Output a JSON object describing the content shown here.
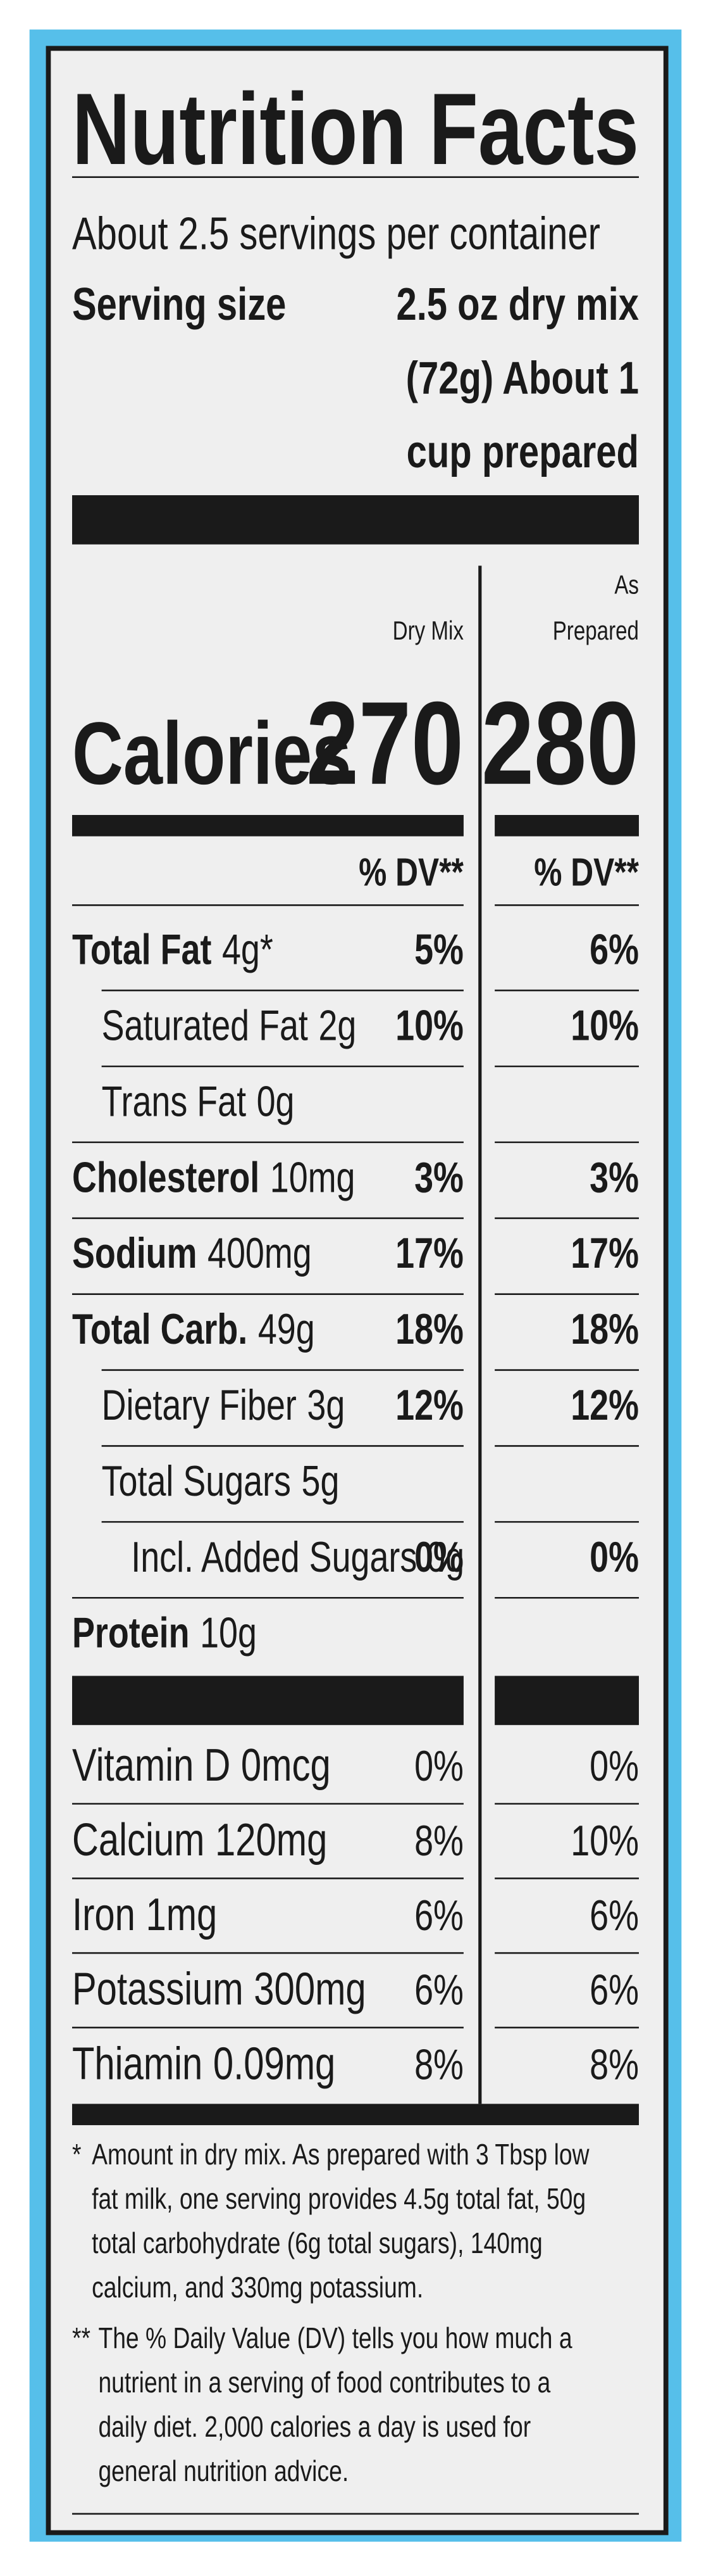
{
  "header": {
    "title": "Nutrition Facts",
    "servings": "About 2.5 servings per container",
    "serving_size_label": "Serving size",
    "serving_size_lines": [
      "2.5 oz dry mix",
      "(72g) About 1",
      "cup prepared"
    ]
  },
  "columns": {
    "dry_mix": "Dry Mix",
    "as_prepared": [
      "As",
      "Prepared"
    ]
  },
  "calories": {
    "label": "Calories",
    "dry_mix": "270",
    "as_prepared": "280"
  },
  "dv_header": [
    "% DV**",
    "% DV**"
  ],
  "nutrients": [
    {
      "label": "Total Fat",
      "amount": "4g*",
      "dry_mix": "5%",
      "as_prepared": "6%",
      "level": 0
    },
    {
      "label": "Saturated Fat",
      "amount": "2g",
      "dry_mix": "10%",
      "as_prepared": "10%",
      "level": 1
    },
    {
      "label": "Trans Fat",
      "amount": "0g",
      "level": 1
    },
    {
      "label": "Cholesterol",
      "amount": "10mg",
      "dry_mix": "3%",
      "as_prepared": "3%",
      "level": 0
    },
    {
      "label": "Sodium",
      "amount": "400mg",
      "dry_mix": "17%",
      "as_prepared": "17%",
      "level": 0
    },
    {
      "label": "Total Carb.",
      "amount": "49g",
      "dry_mix": "18%",
      "as_prepared": "18%",
      "level": 0
    },
    {
      "label": "Dietary Fiber",
      "amount": "3g",
      "dry_mix": "12%",
      "as_prepared": "12%",
      "level": 1
    },
    {
      "label": "Total Sugars",
      "amount": "5g",
      "level": 1
    },
    {
      "label": "Incl. Added Sugars 0g",
      "dry_mix": "0%",
      "as_prepared": "0%",
      "level": 2
    },
    {
      "label": "Protein",
      "amount": "10g",
      "level": 0
    }
  ],
  "vitamins": [
    {
      "label": "Vitamin D",
      "amount": "0mcg",
      "dry_mix": "0%",
      "as_prepared": "0%"
    },
    {
      "label": "Calcium",
      "amount": "120mg",
      "dry_mix": "8%",
      "as_prepared": "10%"
    },
    {
      "label": "Iron",
      "amount": "1mg",
      "dry_mix": "6%",
      "as_prepared": "6%"
    },
    {
      "label": "Potassium",
      "amount": "300mg",
      "dry_mix": "6%",
      "as_prepared": "6%"
    },
    {
      "label": "Thiamin",
      "amount": "0.09mg",
      "dry_mix": "8%",
      "as_prepared": "8%"
    }
  ],
  "footnotes": [
    {
      "marker": "*",
      "lines": [
        "Amount in dry mix. As prepared with 3 Tbsp low",
        "fat milk, one serving provides 4.5g total fat, 50g",
        "total carbohydrate (6g total sugars), 140mg",
        "calcium, and 330mg potassium."
      ]
    },
    {
      "marker": "**",
      "lines": [
        "The % Daily Value (DV) tells you how much a",
        "nutrient in a serving of food contributes to a",
        "daily diet. 2,000 calories a day is used for",
        "general nutrition advice."
      ]
    }
  ]
}
